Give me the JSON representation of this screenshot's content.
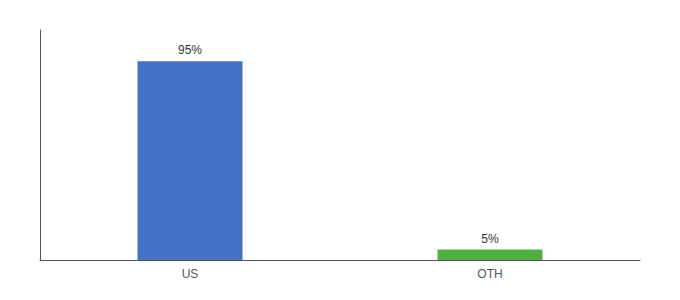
{
  "chart_data": {
    "type": "bar",
    "categories": [
      "US",
      "OTH"
    ],
    "values": [
      95,
      5
    ],
    "value_labels": [
      "95%",
      "5%"
    ],
    "colors": [
      "#4472c4",
      "#4db33d"
    ],
    "ylim": [
      0,
      110
    ],
    "grid": false,
    "data_labels": true,
    "tick_labels": "x"
  }
}
